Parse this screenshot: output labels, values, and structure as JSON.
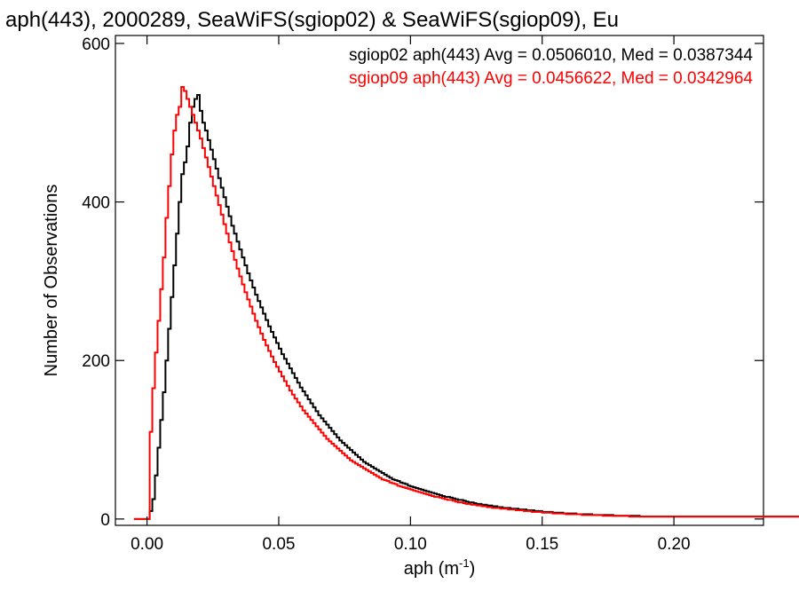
{
  "chart_data": {
    "type": "histogram-step",
    "title": "aph(443), 2000289, SeaWiFS(sgiop02) & SeaWiFS(sgiop09), Eu",
    "xlabel": "aph (m",
    "xlabel_sup": "-1",
    "xlabel_close": ")",
    "ylabel": "Number of Observations",
    "xlim": [
      -0.012,
      0.234
    ],
    "ylim": [
      -8,
      610
    ],
    "x_ticks": [
      0.0,
      0.05,
      0.1,
      0.15,
      0.2
    ],
    "x_tick_labels": [
      "0.00",
      "0.05",
      "0.10",
      "0.15",
      "0.20"
    ],
    "y_ticks": [
      0,
      200,
      400,
      600
    ],
    "y_tick_labels": [
      "0",
      "200",
      "400",
      "600"
    ],
    "bin_width": 0.001,
    "bin_start": -0.005,
    "series": [
      {
        "name": "sgiop02 aph(443)",
        "legend_text": "sgiop02 aph(443) Avg = 0.0506010, Med = 0.0387344",
        "color": "#000000",
        "values": [
          0,
          0,
          0,
          0,
          0,
          0,
          10,
          25,
          55,
          90,
          125,
          160,
          200,
          240,
          280,
          320,
          360,
          400,
          435,
          450,
          470,
          500,
          520,
          530,
          535,
          515,
          500,
          490,
          478,
          466,
          454,
          442,
          430,
          418,
          406,
          394,
          382,
          370,
          360,
          350,
          340,
          330,
          320,
          310,
          301,
          292,
          283,
          275,
          267,
          259,
          251,
          243,
          236,
          229,
          222,
          215,
          208,
          202,
          196,
          190,
          184,
          178,
          172,
          166,
          161,
          156,
          151,
          146,
          141,
          136,
          131,
          127,
          123,
          119,
          115,
          111,
          107,
          103,
          99,
          96,
          93,
          90,
          87,
          84,
          81,
          78,
          75,
          72,
          70,
          68,
          66,
          64,
          62,
          60,
          58,
          56,
          54,
          52,
          50,
          49,
          48,
          46,
          45,
          44,
          42,
          41,
          40,
          39,
          38,
          37,
          36,
          35,
          34,
          33,
          32,
          31,
          30,
          29,
          28,
          28,
          27,
          26,
          25,
          24,
          24,
          23,
          22,
          21,
          21,
          20,
          19,
          19,
          18,
          18,
          17,
          17,
          16,
          16,
          15,
          15,
          14,
          14,
          14,
          13,
          13,
          13,
          12,
          12,
          12,
          11,
          11,
          11,
          10,
          10,
          10,
          9,
          9,
          9,
          9,
          8,
          8,
          8,
          8,
          7,
          7,
          7,
          7,
          7,
          6,
          6,
          6,
          6,
          6,
          6,
          5,
          5,
          5,
          5,
          5,
          5,
          5,
          5,
          4,
          4,
          4,
          4,
          4,
          4,
          4,
          4,
          4,
          4,
          3,
          3,
          3,
          3,
          3,
          3,
          3,
          3,
          3,
          3,
          3,
          3,
          3,
          3,
          3,
          3,
          3,
          3,
          3,
          3,
          3,
          3,
          3,
          3,
          3,
          3,
          3,
          3,
          3,
          3,
          3,
          3,
          3,
          3,
          3,
          3,
          3,
          3,
          3,
          3,
          3,
          3,
          3,
          3,
          3,
          3,
          3,
          3,
          3,
          3,
          3,
          3,
          3,
          3,
          3,
          3,
          3,
          3,
          3,
          3,
          3,
          3,
          3,
          3,
          3,
          3
        ]
      },
      {
        "name": "sgiop09 aph(443)",
        "legend_text": "sgiop09 aph(443) Avg = 0.0456622, Med = 0.0342964",
        "color": "#ff0000",
        "values": [
          0,
          0,
          0,
          0,
          0,
          0,
          110,
          165,
          210,
          250,
          290,
          330,
          380,
          420,
          460,
          490,
          510,
          520,
          545,
          540,
          530,
          520,
          510,
          500,
          490,
          480,
          468,
          456,
          444,
          432,
          420,
          408,
          396,
          384,
          372,
          360,
          349,
          338,
          327,
          316,
          306,
          296,
          286,
          277,
          268,
          259,
          250,
          242,
          234,
          226,
          219,
          212,
          205,
          198,
          192,
          186,
          180,
          174,
          168,
          162,
          157,
          152,
          147,
          142,
          137,
          133,
          129,
          125,
          121,
          117,
          113,
          109,
          105,
          101,
          98,
          95,
          92,
          89,
          86,
          83,
          80,
          77,
          74,
          72,
          70,
          68,
          66,
          64,
          62,
          60,
          58,
          56,
          54,
          52,
          50,
          49,
          48,
          46,
          45,
          44,
          42,
          41,
          40,
          39,
          38,
          37,
          36,
          35,
          34,
          33,
          32,
          31,
          30,
          29,
          28,
          28,
          27,
          26,
          25,
          24,
          24,
          23,
          22,
          21,
          21,
          20,
          19,
          19,
          18,
          18,
          17,
          17,
          16,
          16,
          15,
          15,
          14,
          14,
          14,
          13,
          13,
          13,
          12,
          12,
          12,
          11,
          11,
          11,
          10,
          10,
          10,
          9,
          9,
          9,
          9,
          8,
          8,
          8,
          8,
          7,
          7,
          7,
          7,
          7,
          6,
          6,
          6,
          6,
          6,
          6,
          5,
          5,
          5,
          5,
          5,
          5,
          5,
          5,
          4,
          4,
          4,
          4,
          4,
          4,
          4,
          4,
          4,
          4,
          3,
          3,
          3,
          3,
          3,
          3,
          3,
          3,
          3,
          3,
          3,
          3,
          3,
          3,
          3,
          3,
          3,
          3,
          3,
          3,
          3,
          3,
          3,
          3,
          3,
          3,
          3,
          3,
          3,
          3,
          3,
          3,
          3,
          3,
          3,
          3,
          3,
          3,
          3,
          3,
          3,
          3,
          3,
          3,
          3,
          3,
          3,
          3,
          3,
          3,
          3,
          3,
          3,
          3,
          3,
          3,
          3,
          3,
          3,
          3,
          3,
          3,
          3,
          3,
          3,
          3
        ]
      }
    ]
  }
}
